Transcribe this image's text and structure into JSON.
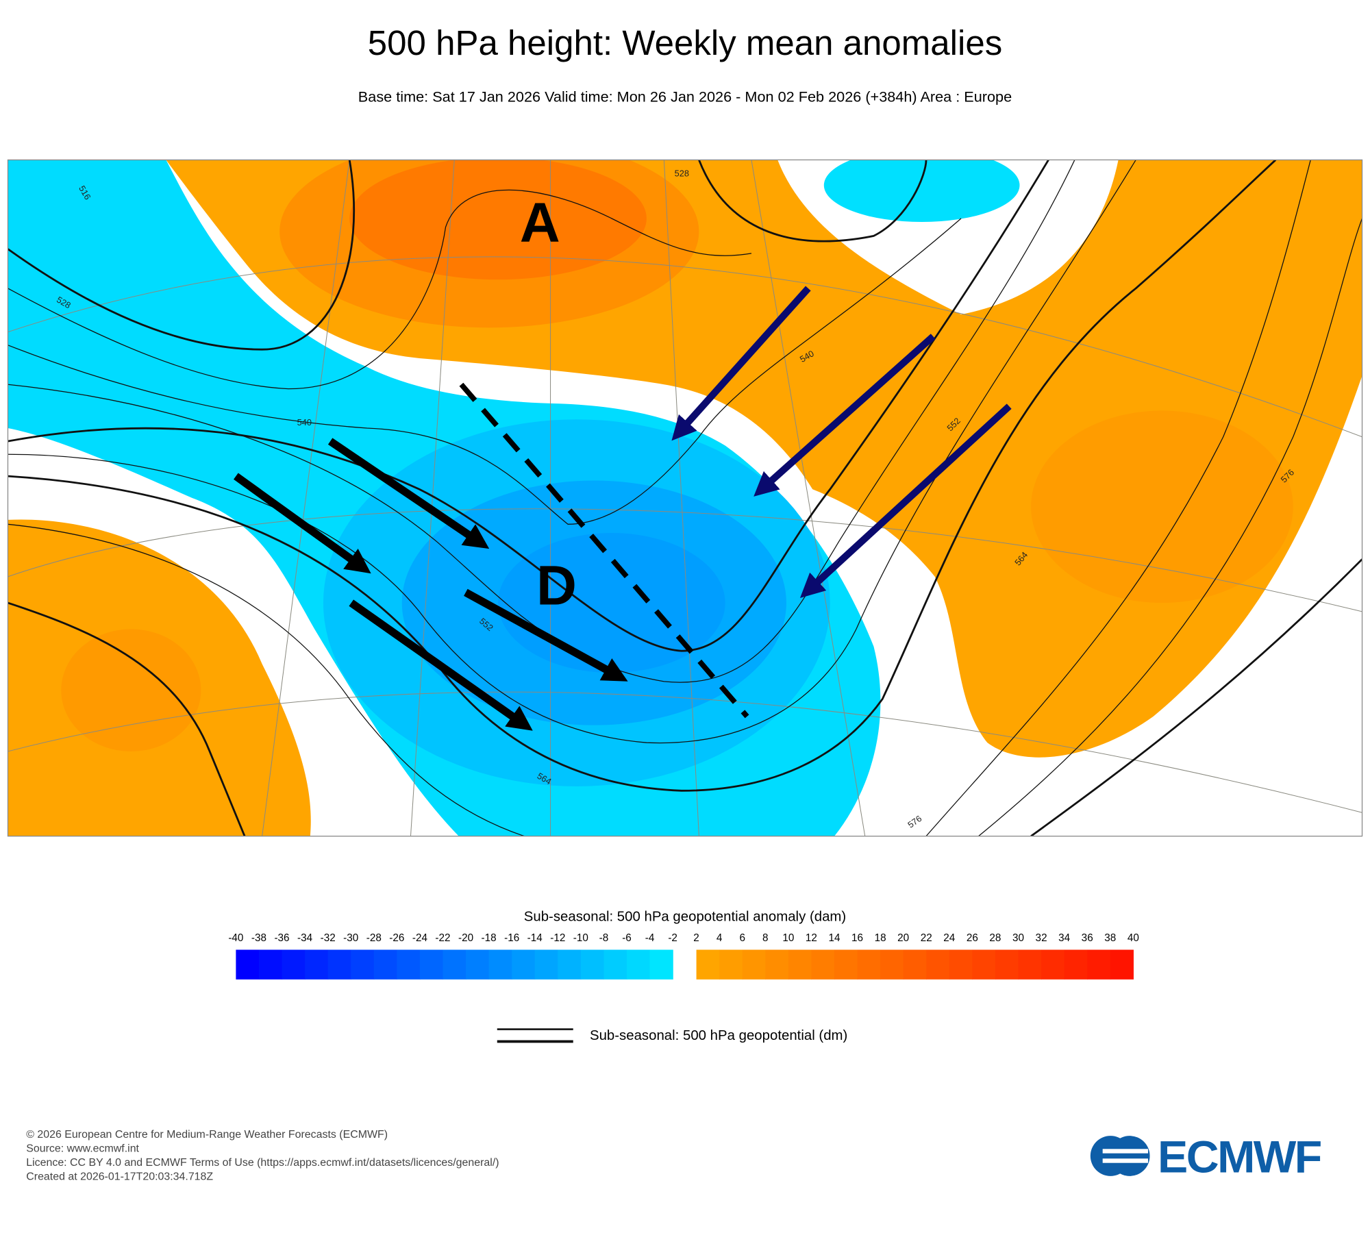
{
  "header": {
    "title": "500 hPa height: Weekly mean anomalies",
    "subtitle": "Base time: Sat 17 Jan 2026 Valid time: Mon 26 Jan 2026 - Mon 02 Feb 2026 (+384h) Area : Europe"
  },
  "map": {
    "labels": [
      "A",
      "D"
    ],
    "contour_labels": [
      "516",
      "528",
      "540",
      "552",
      "564",
      "576"
    ]
  },
  "colorbar": {
    "title": "Sub-seasonal: 500 hPa geopotential anomaly (dam)",
    "ticks": [
      -40,
      -38,
      -36,
      -34,
      -32,
      -30,
      -28,
      -26,
      -24,
      -22,
      -20,
      -18,
      -16,
      -14,
      -12,
      -10,
      -8,
      -6,
      -4,
      -2,
      2,
      4,
      6,
      8,
      10,
      12,
      14,
      16,
      18,
      20,
      22,
      24,
      26,
      28,
      30,
      32,
      34,
      36,
      38,
      40
    ]
  },
  "legend": {
    "label": "Sub-seasonal: 500 hPa geopotential (dm)"
  },
  "footer": {
    "lines": [
      "© 2026 European Centre for Medium-Range Weather Forecasts (ECMWF)",
      "Source: www.ecmwf.int",
      "Licence: CC BY 4.0 and ECMWF Terms of Use (https://apps.ecmwf.int/datasets/licences/general/)",
      "Created at 2026-01-17T20:03:34.718Z"
    ]
  },
  "logo": {
    "text": "ECMWF"
  }
}
